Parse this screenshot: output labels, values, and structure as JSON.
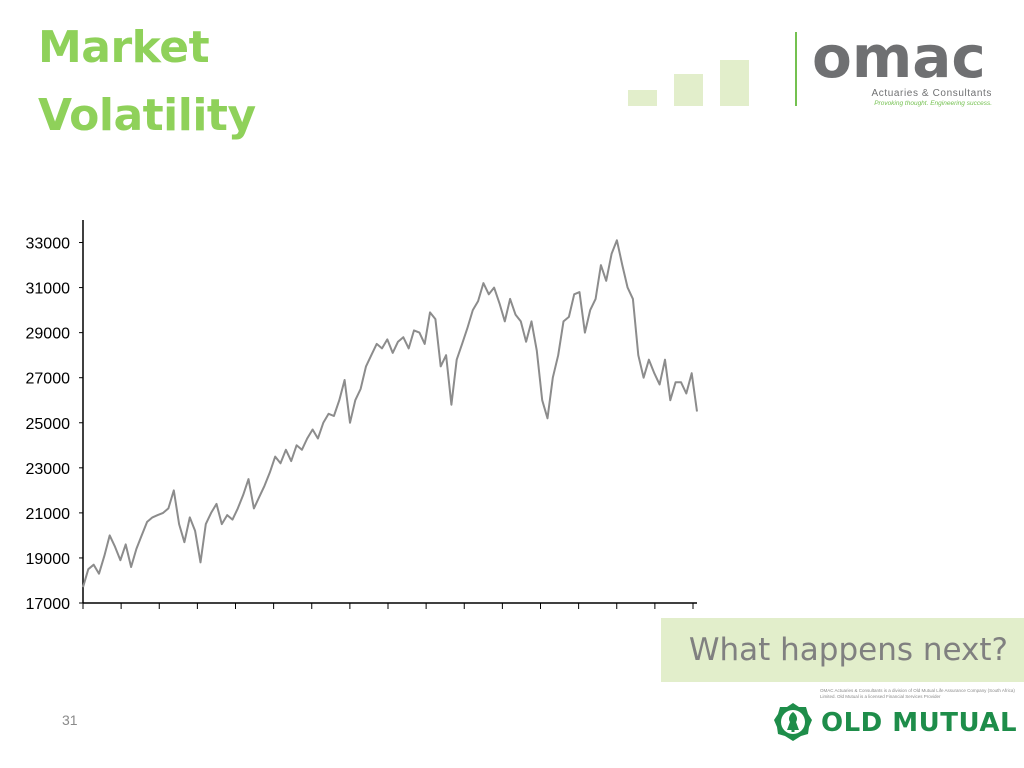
{
  "slide": {
    "title_line1": "Market",
    "title_line2": "Volatility",
    "callout": "What happens next?",
    "page_number": "31"
  },
  "branding": {
    "omac_word": "omac",
    "omac_subtitle": "Actuaries & Consultants",
    "omac_tagline": "Provoking thought. Engineering success.",
    "disclaimer": "OMAC Actuaries & Consultants is a division of Old Mutual Life Assurance Company (South Africa) Limited. Old Mutual is a licensed Financial Services Provider",
    "old_mutual": "OLD MUTUAL",
    "colors": {
      "title_green": "#8fd15a",
      "divider_green": "#74c150",
      "light_green": "#e2eecb",
      "old_mutual_green": "#1e8d4a",
      "omac_gray": "#6f7072",
      "line_gray": "#8c8c8c"
    },
    "icons": [
      "omac-logo",
      "bar-steps-graphic",
      "old-mutual-emblem"
    ]
  },
  "chart_data": {
    "type": "line",
    "title": "",
    "xlabel": "",
    "ylabel": "",
    "ylim": [
      17000,
      34000
    ],
    "yticks": [
      17000,
      19000,
      21000,
      23000,
      25000,
      27000,
      29000,
      31000,
      33000
    ],
    "x_tick_count": 16,
    "grid": false,
    "legend": "none",
    "series": [
      {
        "values": [
          17700,
          18500,
          18700,
          18300,
          19100,
          20000,
          19500,
          18900,
          19600,
          18600,
          19400,
          20000,
          20600,
          20800,
          20900,
          21000,
          21200,
          22000,
          20500,
          19700,
          20800,
          20200,
          18800,
          20500,
          21000,
          21400,
          20500,
          20900,
          20700,
          21200,
          21800,
          22500,
          21200,
          21700,
          22200,
          22800,
          23500,
          23200,
          23800,
          23300,
          24000,
          23800,
          24300,
          24700,
          24300,
          25000,
          25400,
          25300,
          26000,
          26900,
          25000,
          26000,
          26500,
          27500,
          28000,
          28500,
          28300,
          28700,
          28100,
          28600,
          28800,
          28300,
          29100,
          29000,
          28500,
          29900,
          29600,
          27500,
          28000,
          25800,
          27800,
          28500,
          29200,
          30000,
          30400,
          31200,
          30700,
          31000,
          30300,
          29500,
          30500,
          29800,
          29500,
          28600,
          29500,
          28200,
          26000,
          25200,
          27000,
          28000,
          29500,
          29700,
          30700,
          30800,
          29000,
          30000,
          30500,
          32000,
          31300,
          32500,
          33100,
          32000,
          31000,
          30500,
          28000,
          27000,
          27800,
          27200,
          26700,
          27800,
          26000,
          26800,
          26800,
          26300,
          27200,
          25500
        ]
      }
    ]
  }
}
